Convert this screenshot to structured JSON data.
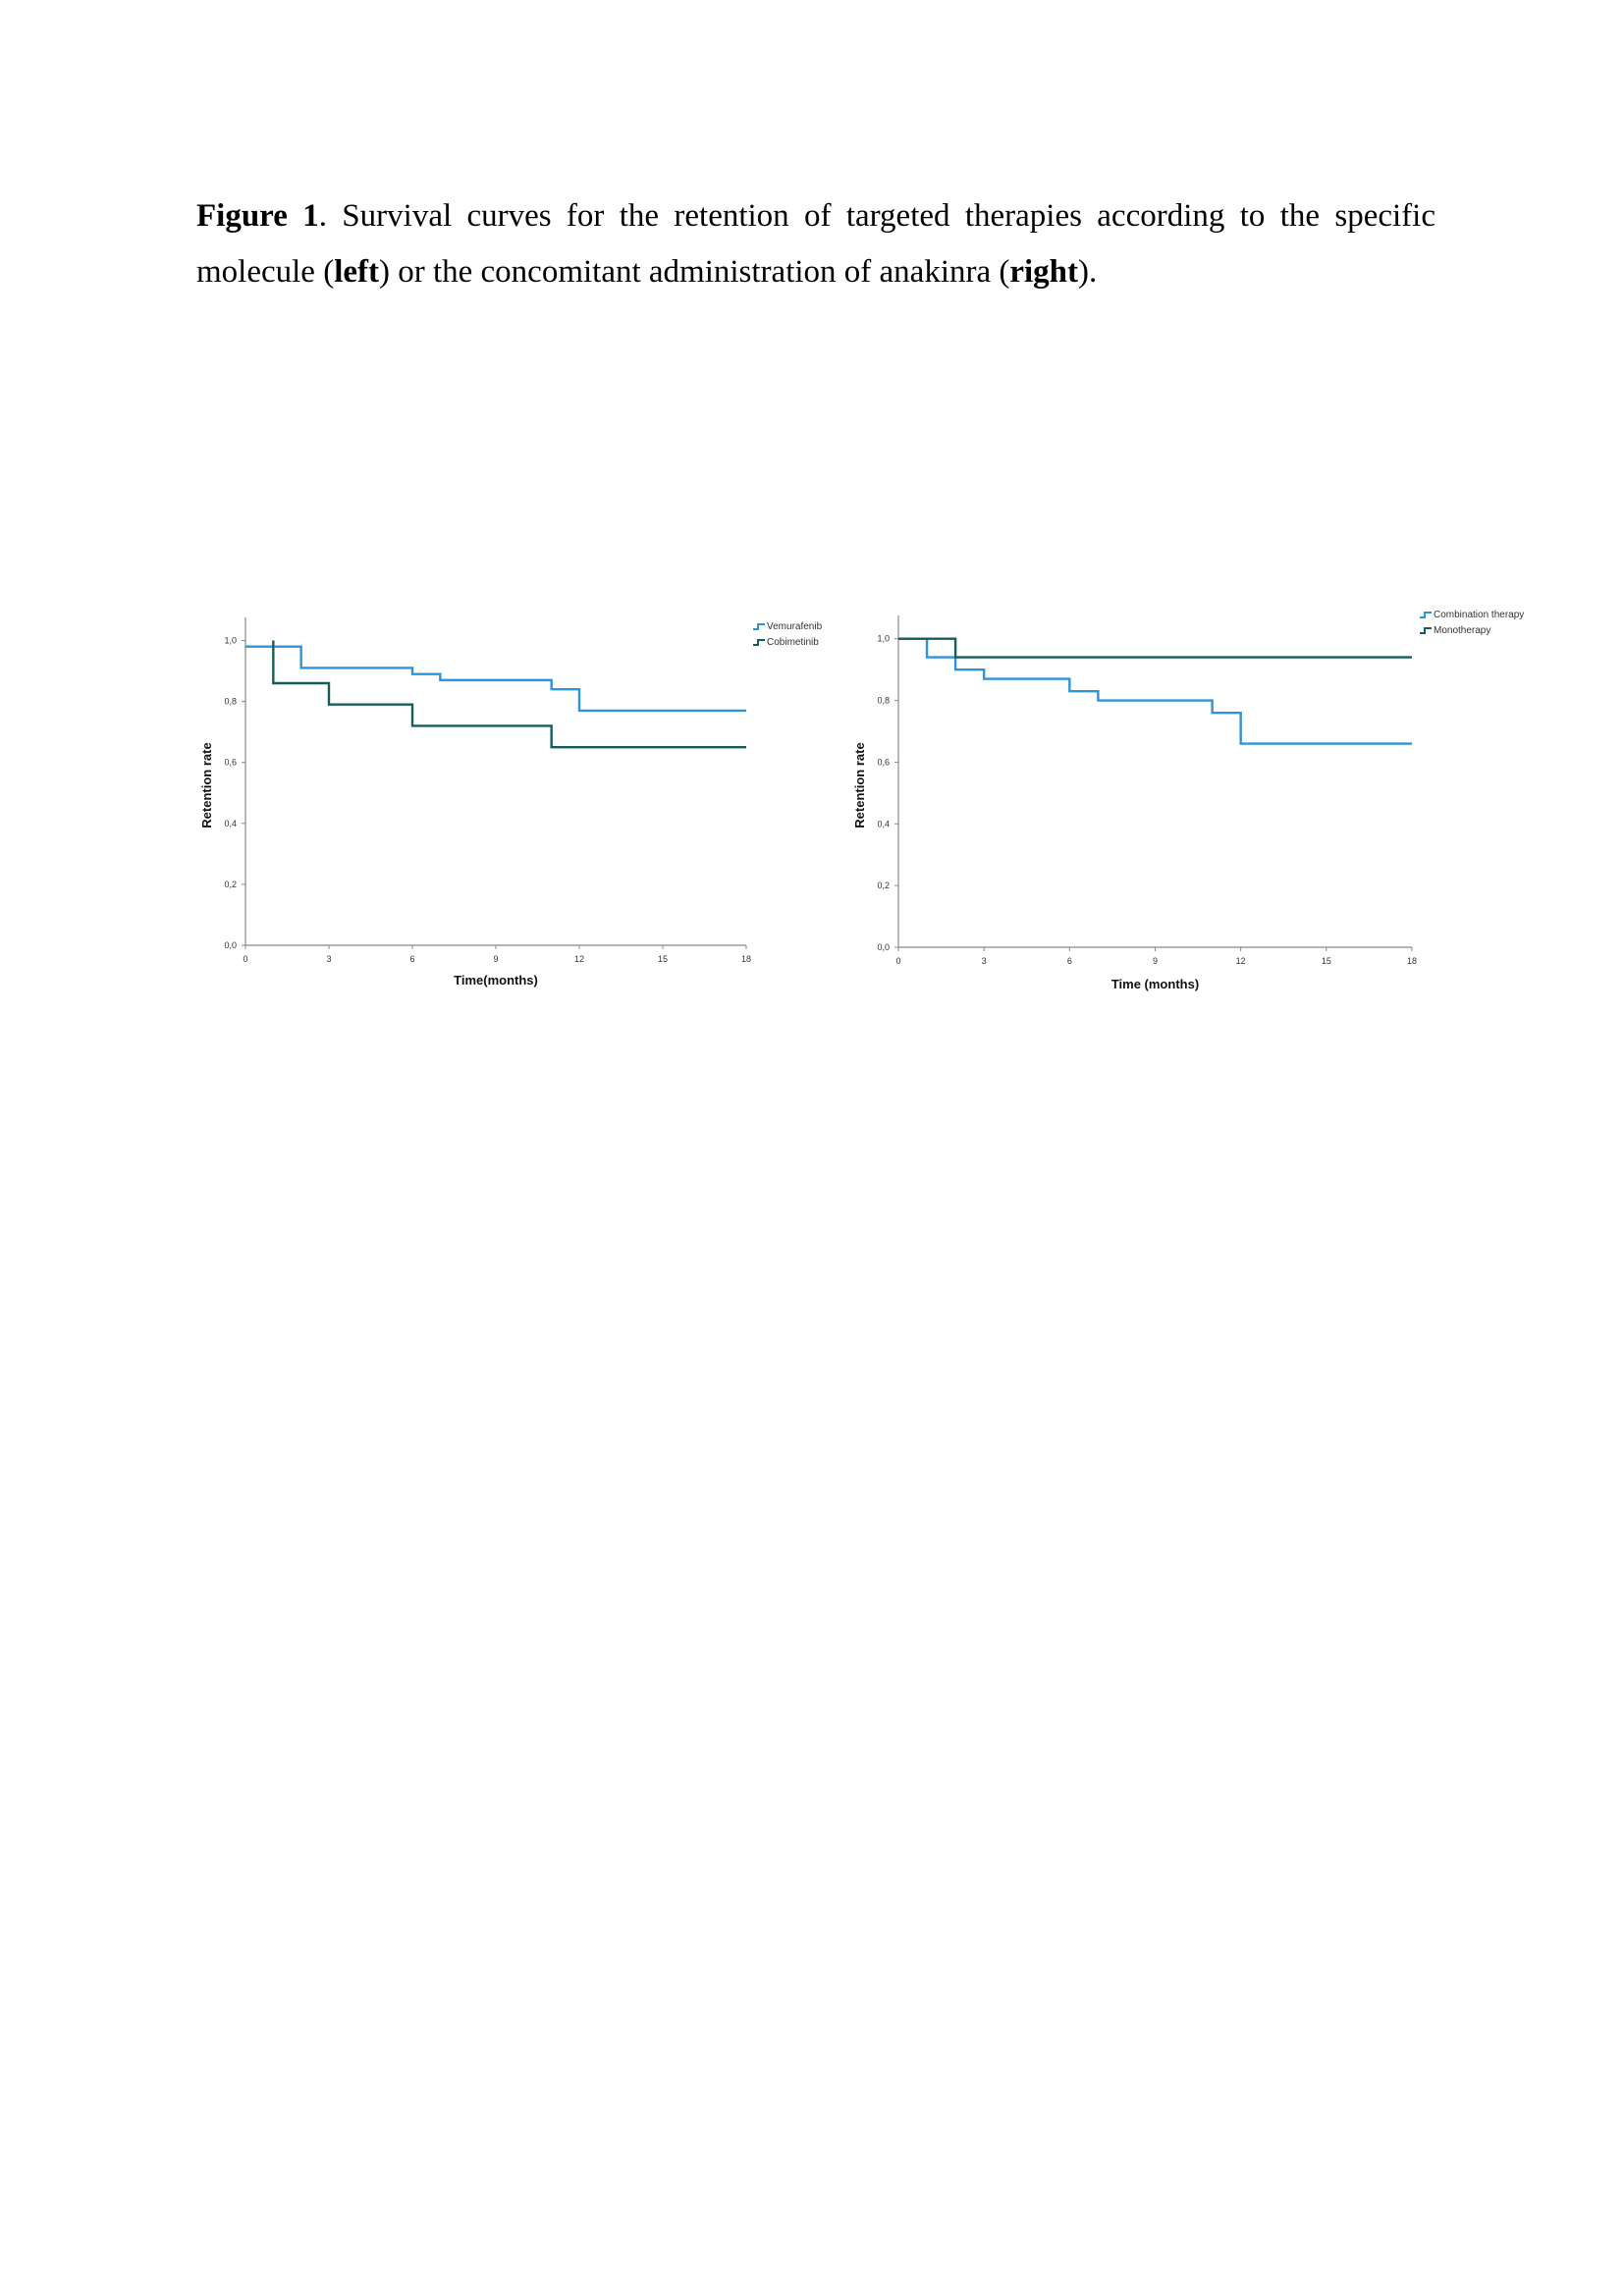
{
  "caption": {
    "label": "Figure 1",
    "text_1": ". Survival curves for the retention of targeted therapies according to the specific molecule (",
    "bold_1": "left",
    "text_2": ") or the concomitant administration of anakinra (",
    "bold_2": "right",
    "text_3": ")."
  },
  "chart_data": [
    {
      "type": "line",
      "step": true,
      "xlabel": "Time(months)",
      "ylabel": "Retention rate",
      "xlim": [
        0,
        18
      ],
      "ylim": [
        0,
        1.05
      ],
      "xticks": [
        "0",
        "3",
        "6",
        "9",
        "12",
        "15",
        "18"
      ],
      "yticks": [
        "0,0",
        "0,2",
        "0,4",
        "0,6",
        "0,8",
        "1,0"
      ],
      "legend_position": "top-right",
      "series": [
        {
          "name": "Vemurafenib",
          "color": "#2f93d8",
          "x": [
            0,
            2,
            6,
            7,
            11,
            12,
            18
          ],
          "y": [
            0.98,
            0.91,
            0.89,
            0.87,
            0.84,
            0.77,
            0.77
          ]
        },
        {
          "name": "Cobimetinib",
          "color": "#135e5a",
          "x": [
            1,
            1,
            3,
            6,
            11,
            18
          ],
          "y": [
            1.0,
            0.86,
            0.79,
            0.72,
            0.65,
            0.65
          ]
        }
      ]
    },
    {
      "type": "line",
      "step": true,
      "xlabel": "Time (months)",
      "ylabel": "Retention rate",
      "xlim": [
        0,
        18
      ],
      "ylim": [
        0,
        1.05
      ],
      "xticks": [
        "0",
        "3",
        "6",
        "9",
        "12",
        "15",
        "18"
      ],
      "yticks": [
        "0,0",
        "0,2",
        "0,4",
        "0,6",
        "0,8",
        "1,0"
      ],
      "legend_position": "top-right",
      "series": [
        {
          "name": "Combination therapy",
          "color": "#2f93d8",
          "x": [
            0,
            1,
            2,
            3,
            6,
            7,
            11,
            12,
            18
          ],
          "y": [
            1.0,
            0.94,
            0.9,
            0.87,
            0.83,
            0.8,
            0.76,
            0.66,
            0.66
          ]
        },
        {
          "name": "Monotherapy",
          "color": "#135e5a",
          "x": [
            0,
            2,
            18
          ],
          "y": [
            1.0,
            0.94,
            0.94
          ]
        }
      ]
    }
  ]
}
